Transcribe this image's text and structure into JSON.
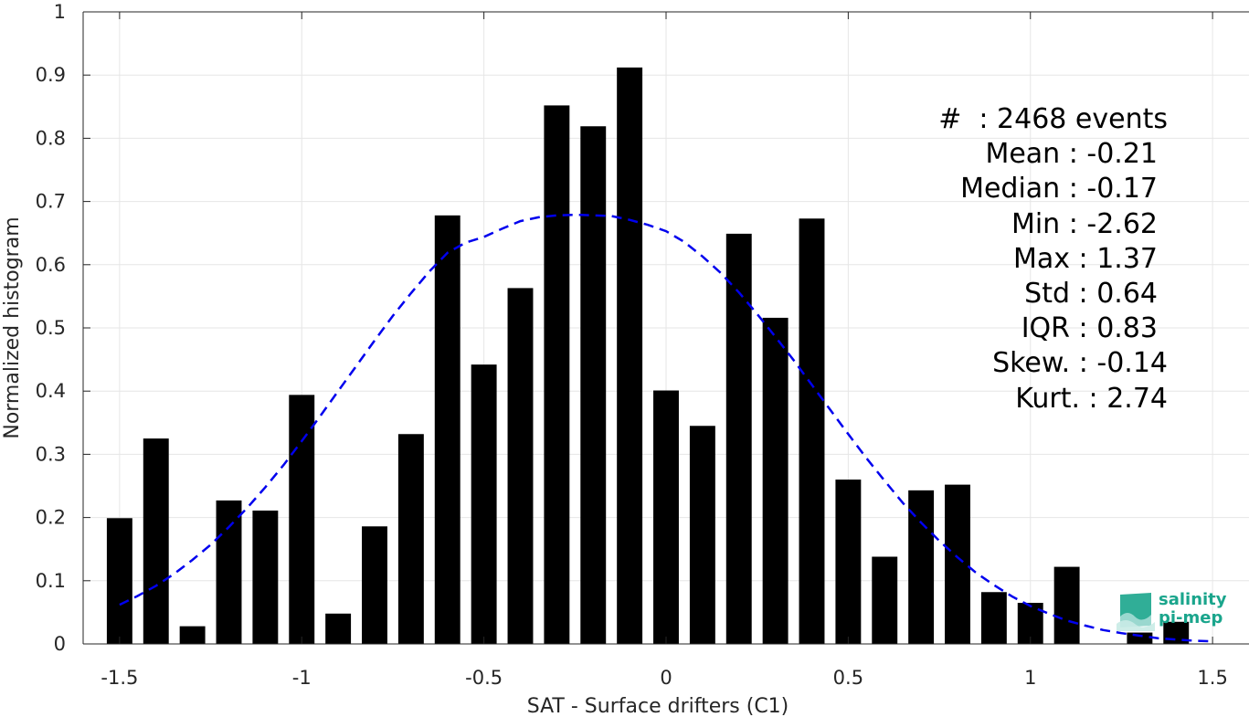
{
  "chart_data": {
    "type": "bar",
    "xlabel": "SAT - Surface drifters (C1)",
    "ylabel": "Normalized histogram",
    "xlim": [
      -1.6,
      1.6
    ],
    "ylim": [
      0,
      1
    ],
    "grid": true,
    "x_ticks": [
      "-1.5",
      "-1",
      "-0.5",
      "0",
      "0.5",
      "1",
      "1.5"
    ],
    "y_ticks": [
      "0",
      "0.1",
      "0.2",
      "0.3",
      "0.4",
      "0.5",
      "0.6",
      "0.7",
      "0.8",
      "0.9",
      "1"
    ],
    "bar_width": 0.07,
    "bars": [
      {
        "x": -1.5,
        "y": 0.199
      },
      {
        "x": -1.4,
        "y": 0.325
      },
      {
        "x": -1.3,
        "y": 0.028
      },
      {
        "x": -1.2,
        "y": 0.227
      },
      {
        "x": -1.1,
        "y": 0.211
      },
      {
        "x": -1.0,
        "y": 0.394
      },
      {
        "x": -0.9,
        "y": 0.048
      },
      {
        "x": -0.8,
        "y": 0.186
      },
      {
        "x": -0.7,
        "y": 0.332
      },
      {
        "x": -0.6,
        "y": 0.678
      },
      {
        "x": -0.5,
        "y": 0.442
      },
      {
        "x": -0.4,
        "y": 0.563
      },
      {
        "x": -0.3,
        "y": 0.852
      },
      {
        "x": -0.2,
        "y": 0.819
      },
      {
        "x": -0.1,
        "y": 0.912
      },
      {
        "x": 0.0,
        "y": 0.401
      },
      {
        "x": 0.1,
        "y": 0.345
      },
      {
        "x": 0.2,
        "y": 0.649
      },
      {
        "x": 0.3,
        "y": 0.516
      },
      {
        "x": 0.4,
        "y": 0.673
      },
      {
        "x": 0.5,
        "y": 0.26
      },
      {
        "x": 0.6,
        "y": 0.138
      },
      {
        "x": 0.7,
        "y": 0.243
      },
      {
        "x": 0.8,
        "y": 0.252
      },
      {
        "x": 0.9,
        "y": 0.082
      },
      {
        "x": 1.0,
        "y": 0.065
      },
      {
        "x": 1.1,
        "y": 0.122
      },
      {
        "x": 1.3,
        "y": 0.018
      },
      {
        "x": 1.4,
        "y": 0.035
      }
    ],
    "fit_curve": {
      "style": "dashed",
      "color": "#0000ee",
      "x": [
        -1.5,
        -1.45,
        -1.4,
        -1.35,
        -1.3,
        -1.25,
        -1.2,
        -1.15,
        -1.1,
        -1.05,
        -1.0,
        -0.95,
        -0.9,
        -0.85,
        -0.8,
        -0.75,
        -0.7,
        -0.65,
        -0.6,
        -0.55,
        -0.5,
        -0.45,
        -0.4,
        -0.35,
        -0.3,
        -0.25,
        -0.2,
        -0.15,
        -0.1,
        -0.05,
        0.0,
        0.05,
        0.1,
        0.15,
        0.2,
        0.25,
        0.3,
        0.35,
        0.4,
        0.45,
        0.5,
        0.55,
        0.6,
        0.65,
        0.7,
        0.75,
        0.8,
        0.85,
        0.9,
        0.95,
        1.0,
        1.05,
        1.1,
        1.15,
        1.2,
        1.25,
        1.3,
        1.35,
        1.4,
        1.45,
        1.5
      ],
      "y": [
        0.062,
        0.076,
        0.092,
        0.111,
        0.133,
        0.157,
        0.185,
        0.215,
        0.248,
        0.283,
        0.321,
        0.36,
        0.4,
        0.44,
        0.48,
        0.519,
        0.555,
        0.589,
        0.619,
        0.635,
        0.644,
        0.657,
        0.669,
        0.675,
        0.678,
        0.679,
        0.678,
        0.677,
        0.671,
        0.663,
        0.653,
        0.636,
        0.613,
        0.587,
        0.556,
        0.522,
        0.486,
        0.449,
        0.41,
        0.371,
        0.332,
        0.294,
        0.258,
        0.223,
        0.192,
        0.163,
        0.137,
        0.113,
        0.093,
        0.075,
        0.06,
        0.048,
        0.037,
        0.029,
        0.022,
        0.017,
        0.013,
        0.009,
        0.007,
        0.005,
        0.004
      ]
    },
    "annotations": [
      "#  : 2468 events",
      "Mean : -0.21",
      "Median : -0.17",
      "Min : -2.62",
      "Max : 1.37",
      "Std : 0.64",
      "IQR : 0.83",
      "Skew. : -0.14",
      "Kurt. : 2.74"
    ]
  },
  "logo": {
    "line1": "salinity",
    "line2": "pi-mep"
  }
}
